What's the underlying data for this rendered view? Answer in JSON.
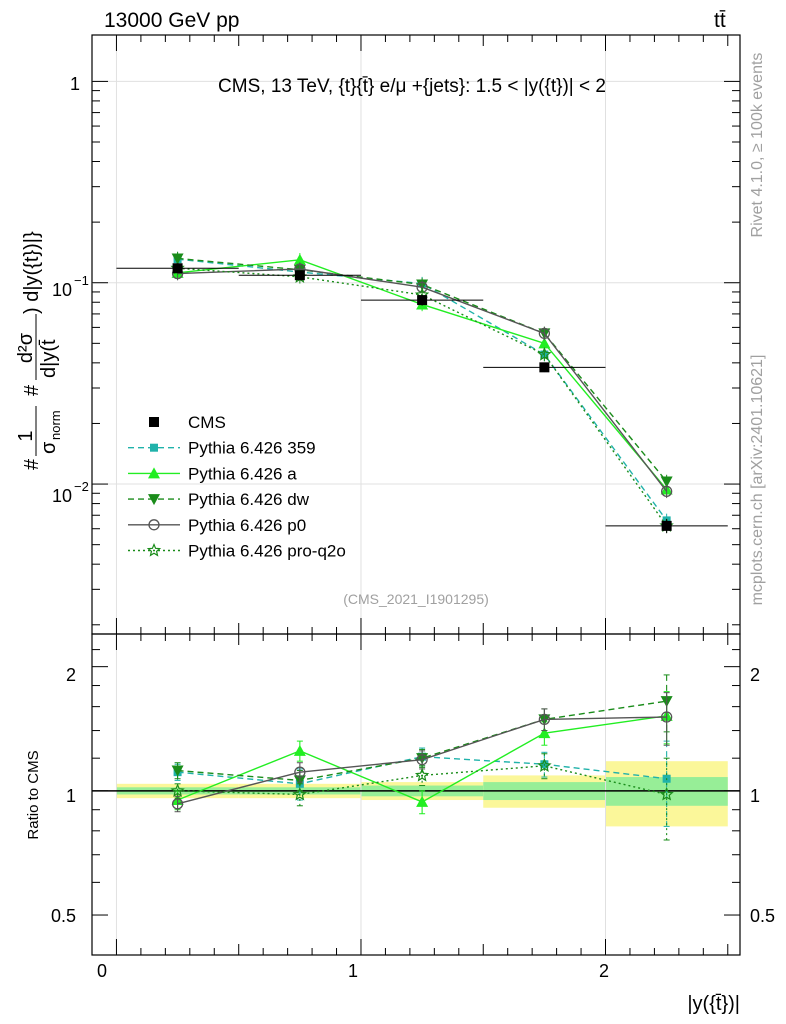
{
  "header": {
    "left_label": "13000 GeV pp",
    "right_label": "tt̄"
  },
  "side_labels": {
    "rivet": "Rivet 4.1.0, ≥ 100k events",
    "source": "mcplots.cern.ch [arXiv:2401.10621]"
  },
  "chart_data": {
    "type": "line",
    "title": "CMS, 13 TeV, {t}{t̄} e/μ +{jets}: 1.5 < |y({t})| < 2",
    "analysis_id": "(CMS_2021_I1901295)",
    "xlabel": "|y({t̄})|",
    "ylabel": {
      "hash1": "#",
      "one": "1",
      "sigma": "σ",
      "norm": "norm",
      "hash2": "#",
      "num": "d²σ",
      "den": "d|y(t̄",
      "tail": ") d|y({t})|}"
    },
    "ratio_ylabel": "Ratio to CMS",
    "xlim": [
      -0.1,
      2.55
    ],
    "ylim": [
      0.0018,
      1.7
    ],
    "ratio_ylim": [
      0.4,
      2.4
    ],
    "x_ticks": [
      "0",
      "1",
      "2"
    ],
    "y_ticks": {
      "main": [
        "1",
        "10",
        "10"
      ],
      "main_exp": [
        "",
        "−1",
        "−2"
      ]
    },
    "ratio_ticks": [
      "0.5",
      "1",
      "2"
    ],
    "bins": [
      [
        0,
        0.5
      ],
      [
        0.5,
        1.0
      ],
      [
        1.0,
        1.5
      ],
      [
        1.5,
        2.0
      ],
      [
        2.0,
        2.5
      ]
    ],
    "x": [
      0.25,
      0.75,
      1.25,
      1.75,
      2.25
    ],
    "data": {
      "name": "CMS",
      "values": [
        0.118,
        0.109,
        0.082,
        0.038,
        0.0062
      ],
      "err": [
        0.006,
        0.005,
        0.005,
        0.002,
        0.0005
      ],
      "band_stat": [
        0.02,
        0.02,
        0.03,
        0.05,
        0.08
      ],
      "band_tot": [
        0.04,
        0.04,
        0.05,
        0.09,
        0.18
      ]
    },
    "series": [
      {
        "name": "Pythia 6.426 359",
        "color": "#20b2aa",
        "dash": "6,4",
        "marker": "square",
        "values": [
          0.131,
          0.113,
          0.099,
          0.044,
          0.0066
        ],
        "ratio": [
          1.11,
          1.04,
          1.21,
          1.16,
          1.07
        ],
        "ratio_err": [
          0.05,
          0.09,
          0.06,
          0.08,
          0.25
        ]
      },
      {
        "name": "Pythia 6.426 a",
        "color": "#22ee22",
        "dash": "",
        "marker": "triangle-up",
        "values": [
          0.112,
          0.13,
          0.078,
          0.05,
          0.0094
        ],
        "ratio": [
          0.95,
          1.25,
          0.94,
          1.38,
          1.52
        ],
        "ratio_err": [
          0.05,
          0.07,
          0.06,
          0.09,
          0.22
        ]
      },
      {
        "name": "Pythia 6.426 dw",
        "color": "#1a8c1a",
        "dash": "6,4",
        "marker": "triangle-down",
        "values": [
          0.132,
          0.116,
          0.098,
          0.056,
          0.0103
        ],
        "ratio": [
          1.12,
          1.06,
          1.2,
          1.49,
          1.65
        ],
        "ratio_err": [
          0.05,
          0.06,
          0.06,
          0.09,
          0.26
        ]
      },
      {
        "name": "Pythia 6.426 p0",
        "color": "#555555",
        "dash": "",
        "marker": "circle-open",
        "values": [
          0.111,
          0.117,
          0.095,
          0.056,
          0.0092
        ],
        "ratio": [
          0.93,
          1.11,
          1.19,
          1.49,
          1.51
        ],
        "ratio_err": [
          0.04,
          0.06,
          0.06,
          0.09,
          0.22
        ]
      },
      {
        "name": "Pythia 6.426 pro-q2o",
        "color": "#1a8c1a",
        "dash": "2,3",
        "marker": "star-open",
        "values": [
          0.118,
          0.107,
          0.087,
          0.044,
          0.0062
        ],
        "ratio": [
          1.0,
          0.98,
          1.09,
          1.15,
          0.98
        ],
        "ratio_err": [
          0.04,
          0.06,
          0.06,
          0.08,
          0.22
        ]
      }
    ]
  }
}
